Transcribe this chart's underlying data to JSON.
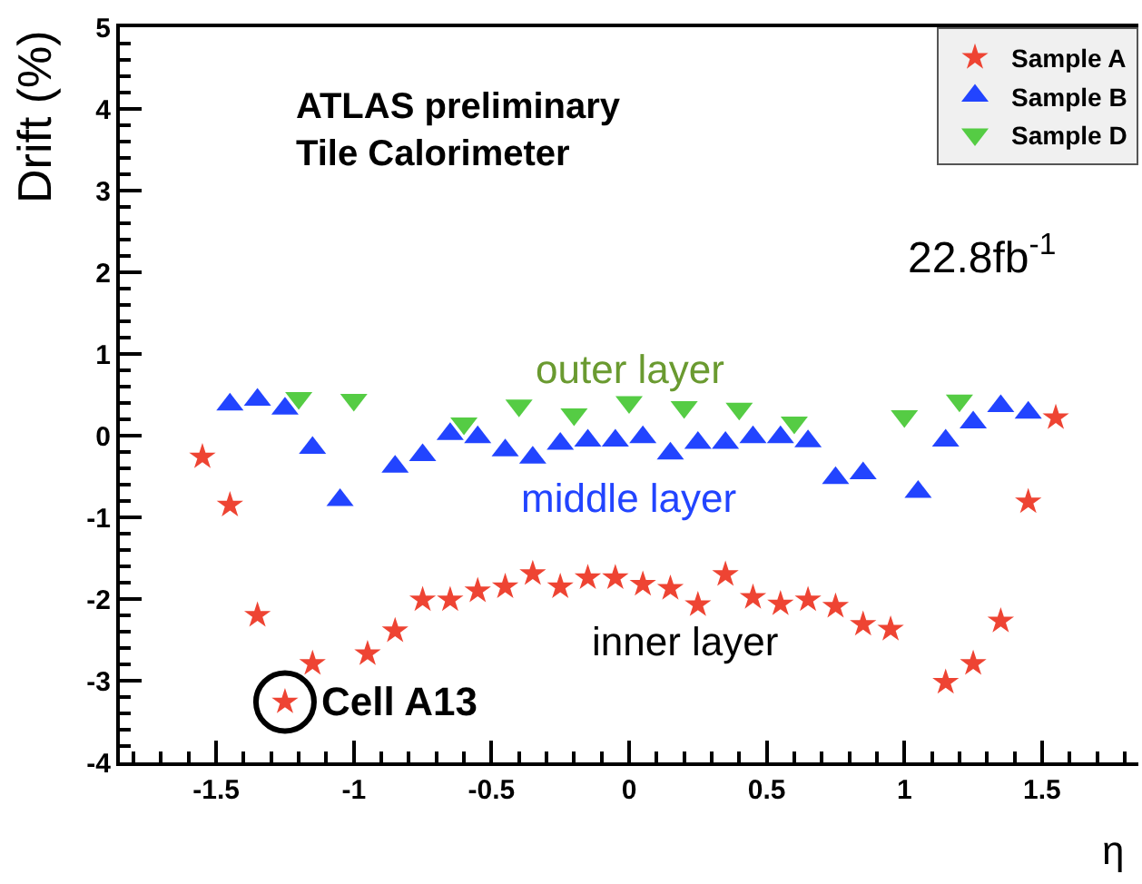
{
  "chart_data": {
    "type": "scatter",
    "xlabel": "η",
    "ylabel": "Drift (%)",
    "xlim": [
      -1.85,
      1.85
    ],
    "xticks": [
      -1.5,
      -1,
      -0.5,
      0,
      0.5,
      1,
      1.5
    ],
    "ylim": [
      -4,
      5
    ],
    "yticks": [
      -4,
      -3,
      -2,
      -1,
      0,
      1,
      2,
      3,
      4,
      5
    ],
    "legend": "top right",
    "series": [
      {
        "name": "Sample A",
        "color": "#ee4433",
        "marker": "star",
        "x": [
          -1.55,
          -1.45,
          -1.35,
          -1.25,
          -1.15,
          -0.95,
          -0.85,
          -0.75,
          -0.65,
          -0.55,
          -0.45,
          -0.35,
          -0.25,
          -0.15,
          -0.05,
          0.05,
          0.15,
          0.25,
          0.35,
          0.45,
          0.55,
          0.65,
          0.75,
          0.85,
          0.95,
          1.15,
          1.25,
          1.35,
          1.45,
          1.55
        ],
        "values": [
          -0.26,
          -0.85,
          -2.2,
          -3.26,
          -2.79,
          -2.67,
          -2.39,
          -2.01,
          -2.01,
          -1.9,
          -1.85,
          -1.69,
          -1.85,
          -1.74,
          -1.74,
          -1.82,
          -1.87,
          -2.07,
          -1.7,
          -1.98,
          -2.06,
          -2.01,
          -2.09,
          -2.31,
          -2.37,
          -3.02,
          -2.79,
          -2.27,
          -0.81,
          0.22
        ]
      },
      {
        "name": "Sample B",
        "color": "#2244ff",
        "marker": "triangle",
        "x": [
          -1.45,
          -1.35,
          -1.25,
          -1.15,
          -1.05,
          -0.85,
          -0.75,
          -0.65,
          -0.55,
          -0.45,
          -0.35,
          -0.25,
          -0.15,
          -0.05,
          0.05,
          0.15,
          0.25,
          0.35,
          0.45,
          0.55,
          0.65,
          0.75,
          0.85,
          1.05,
          1.15,
          1.25,
          1.35,
          1.45
        ],
        "values": [
          0.38,
          0.44,
          0.33,
          -0.15,
          -0.79,
          -0.38,
          -0.24,
          0.02,
          -0.02,
          -0.18,
          -0.27,
          -0.1,
          -0.06,
          -0.06,
          -0.02,
          -0.22,
          -0.09,
          -0.09,
          -0.02,
          -0.02,
          -0.07,
          -0.52,
          -0.46,
          -0.69,
          -0.06,
          0.16,
          0.36,
          0.28
        ]
      },
      {
        "name": "Sample D",
        "color": "#55cc44",
        "marker": "triangle-down",
        "x": [
          -1.2,
          -1.0,
          -0.6,
          -0.4,
          -0.2,
          0.0,
          0.2,
          0.4,
          0.6,
          1.0,
          1.2
        ],
        "values": [
          0.46,
          0.44,
          0.15,
          0.37,
          0.26,
          0.41,
          0.35,
          0.33,
          0.16,
          0.24,
          0.43
        ]
      }
    ],
    "annotations": [
      "ATLAS preliminary\nTile Calorimeter",
      "22.8fb$^{-1}$",
      "outer layer",
      "middle layer",
      "inner layer",
      {
        "text": "Cell A13",
        "x": -1.25,
        "y": -3.26
      }
    ]
  }
}
